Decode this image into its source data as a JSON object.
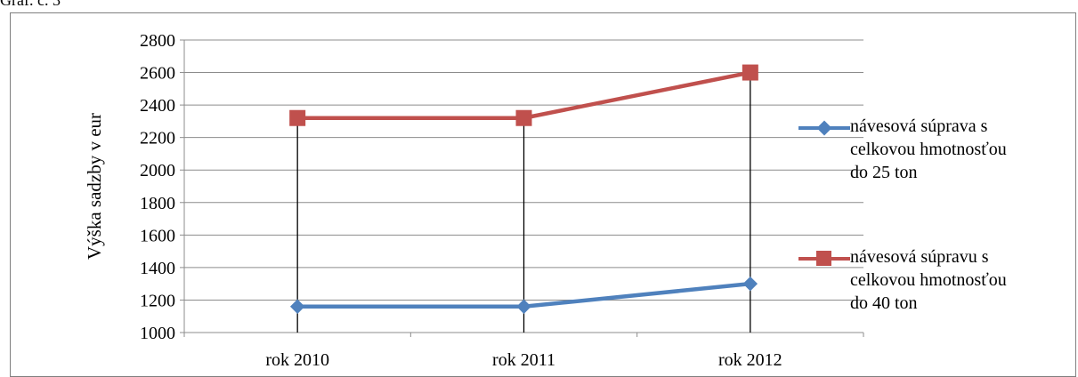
{
  "caption": "Graf. č. 3",
  "chart_data": {
    "type": "line",
    "title": "",
    "xlabel": "",
    "ylabel": "Výška sadzby v eur",
    "categories": [
      "rok 2010",
      "rok 2011",
      "rok 2012"
    ],
    "ylim": [
      1000,
      2800
    ],
    "yticks": [
      1000,
      1200,
      1400,
      1600,
      1800,
      2000,
      2200,
      2400,
      2600,
      2800
    ],
    "grid": true,
    "legend_position": "right",
    "drop_lines": true,
    "series": [
      {
        "name": "návesová súprava s\ncelkovou hmotnosťou\ndo 25 ton",
        "values": [
          1160,
          1160,
          1300
        ],
        "color": "#4f81bd",
        "marker": "diamond"
      },
      {
        "name": "návesová súpravu s\ncelkovou hmotnosťou\ndo 40 ton",
        "values": [
          2320,
          2320,
          2600
        ],
        "color": "#c0504d",
        "marker": "square"
      }
    ]
  }
}
